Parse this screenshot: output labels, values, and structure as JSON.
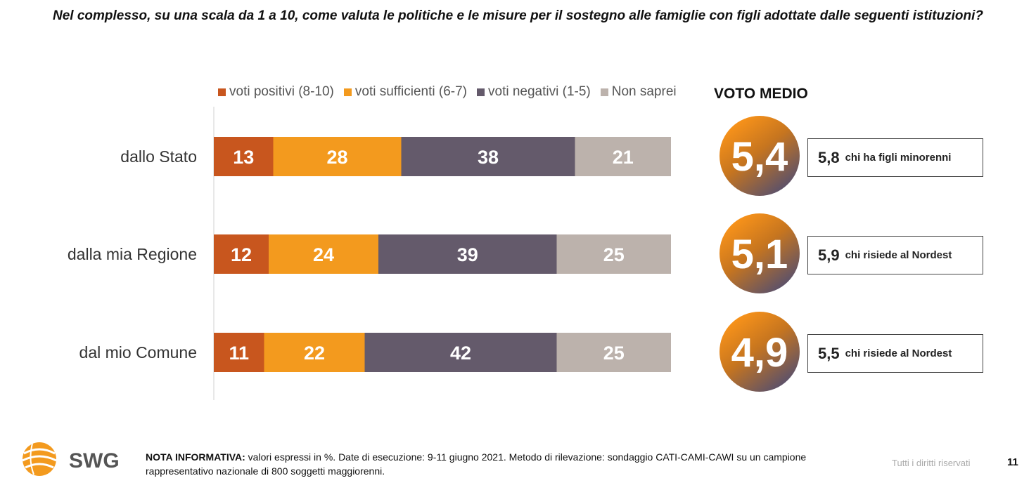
{
  "question": "Nel complesso, su una scala da 1 a 10, come valuta le politiche e le misure per il sostegno alle famiglie con figli adottate dalle seguenti istituzioni?",
  "voto_medio_title": "VOTO MEDIO",
  "colors": {
    "positivi": "#C8561E",
    "sufficienti": "#F39A1E",
    "negativi": "#645A6B",
    "non_saprei": "#BCB2AC"
  },
  "chart_data": {
    "type": "bar",
    "orientation": "horizontal",
    "stacked": true,
    "categories": [
      "dallo Stato",
      "dalla mia Regione",
      "dal mio Comune"
    ],
    "series": [
      {
        "name": "voti positivi (8-10)",
        "values": [
          13,
          12,
          11
        ]
      },
      {
        "name": "voti sufficienti (6-7)",
        "values": [
          28,
          24,
          22
        ]
      },
      {
        "name": "voti negativi (1-5)",
        "values": [
          38,
          39,
          42
        ]
      },
      {
        "name": "Non saprei",
        "values": [
          21,
          25,
          25
        ]
      }
    ],
    "legend_position": "top",
    "voto_medio": [
      "5,4",
      "5,1",
      "4,9"
    ],
    "notes": [
      {
        "value": "5,8",
        "text": "chi ha figli minorenni"
      },
      {
        "value": "5,9",
        "text": "chi risiede al Nordest"
      },
      {
        "value": "5,5",
        "text": "chi risiede al Nordest"
      }
    ]
  },
  "footer": {
    "logo_text": "SWG",
    "note_label": "NOTA INFORMATIVA:",
    "note_text": " valori espressi in %. Date di esecuzione: 9-11 giugno 2021. Metodo di rilevazione: sondaggio CATI-CAMI-CAWI su un campione rappresentativo nazionale di 800 soggetti maggiorenni.",
    "rights": "Tutti i diritti riservati",
    "page": "11"
  }
}
